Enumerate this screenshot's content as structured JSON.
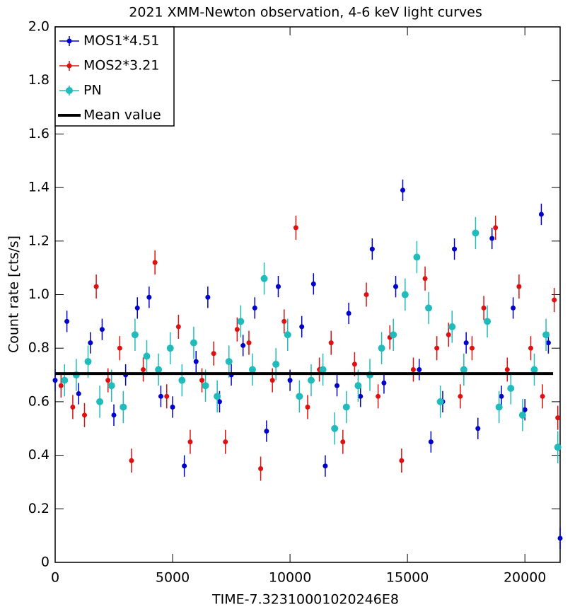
{
  "chart_data": {
    "type": "scatter",
    "title": "2021 XMM-Newton observation, 4-6 keV light curves",
    "x_label": "TIME-7.32310001020246E8",
    "y_label": "Count rate [cts/s]",
    "xlim": [
      0,
      21500
    ],
    "xticks": [
      0,
      5000,
      10000,
      15000,
      20000
    ],
    "ylim": [
      0,
      2
    ],
    "yticks": [
      0,
      0.2,
      0.4,
      0.6,
      0.8,
      {
        "value": 1,
        "label": "1.0"
      },
      1.2,
      1.4,
      1.6,
      1.8,
      {
        "value": 2,
        "label": "2.0"
      }
    ],
    "grid": false,
    "legend": "upper-left",
    "mean_value": 0.705,
    "mean_label": "Mean value",
    "mean_color": "#000000",
    "series": [
      {
        "name": "MOS1*4.51",
        "color": "#0000cc",
        "error": 0.04,
        "x": [
          0,
          500,
          1000,
          1500,
          2000,
          2500,
          3000,
          3500,
          4000,
          4500,
          5000,
          5500,
          6000,
          6500,
          7000,
          7500,
          8000,
          8500,
          9000,
          9500,
          10000,
          10500,
          11000,
          11500,
          12000,
          12500,
          13000,
          13500,
          14000,
          14500,
          14800,
          15500,
          16000,
          16500,
          17000,
          17500,
          18000,
          18600,
          19000,
          19500,
          20000,
          20700,
          21000,
          21500
        ],
        "values": [
          0.68,
          0.9,
          0.63,
          0.82,
          0.87,
          0.55,
          0.7,
          0.95,
          0.99,
          0.62,
          0.58,
          0.36,
          0.75,
          0.99,
          0.6,
          0.7,
          0.81,
          0.95,
          0.49,
          1.03,
          0.68,
          0.88,
          1.04,
          0.36,
          0.66,
          0.93,
          0.62,
          1.17,
          0.67,
          1.03,
          1.39,
          0.72,
          0.45,
          0.6,
          1.17,
          0.82,
          0.5,
          1.21,
          0.62,
          0.95,
          0.57,
          1.3,
          0.82,
          0.09
        ]
      },
      {
        "name": "MOS2*3.21",
        "color": "#dd1111",
        "error": 0.045,
        "x": [
          250,
          750,
          1250,
          1750,
          2250,
          2750,
          3250,
          3750,
          4250,
          4750,
          5250,
          5750,
          6250,
          6750,
          7250,
          7750,
          8250,
          8750,
          9250,
          9750,
          10250,
          10750,
          11250,
          11750,
          12250,
          12750,
          13250,
          13750,
          14250,
          14750,
          15250,
          15750,
          16250,
          16750,
          17250,
          17750,
          18250,
          18750,
          19250,
          19750,
          20250,
          20750,
          21250,
          21400
        ],
        "values": [
          0.66,
          0.58,
          0.55,
          1.03,
          0.68,
          0.8,
          0.38,
          0.72,
          1.12,
          0.62,
          0.88,
          0.45,
          0.68,
          0.78,
          0.45,
          0.87,
          0.82,
          0.35,
          0.68,
          0.9,
          1.25,
          0.58,
          0.72,
          0.82,
          0.45,
          0.74,
          1.0,
          0.62,
          0.84,
          0.38,
          0.72,
          1.06,
          0.8,
          0.85,
          0.62,
          0.8,
          0.95,
          1.25,
          0.72,
          1.03,
          0.8,
          0.62,
          0.98,
          0.54
        ]
      },
      {
        "name": "PN",
        "color": "#22bbbb",
        "error": 0.06,
        "x": [
          400,
          900,
          1400,
          1900,
          2400,
          2900,
          3400,
          3900,
          4400,
          4900,
          5400,
          5900,
          6400,
          6900,
          7400,
          7900,
          8400,
          8900,
          9400,
          9900,
          10400,
          10900,
          11400,
          11900,
          12400,
          12900,
          13400,
          13900,
          14400,
          14900,
          15400,
          15900,
          16400,
          16900,
          17400,
          17900,
          18400,
          18900,
          19400,
          19900,
          20400,
          20900,
          21400
        ],
        "values": [
          0.68,
          0.7,
          0.75,
          0.6,
          0.66,
          0.58,
          0.85,
          0.77,
          0.72,
          0.8,
          0.68,
          0.82,
          0.66,
          0.62,
          0.75,
          0.9,
          0.72,
          1.06,
          0.74,
          0.85,
          0.62,
          0.68,
          0.72,
          0.5,
          0.58,
          0.66,
          0.7,
          0.8,
          0.85,
          1.0,
          1.14,
          0.95,
          0.6,
          0.88,
          0.72,
          1.23,
          0.9,
          0.58,
          0.65,
          0.55,
          0.72,
          0.85,
          0.43
        ]
      }
    ]
  }
}
